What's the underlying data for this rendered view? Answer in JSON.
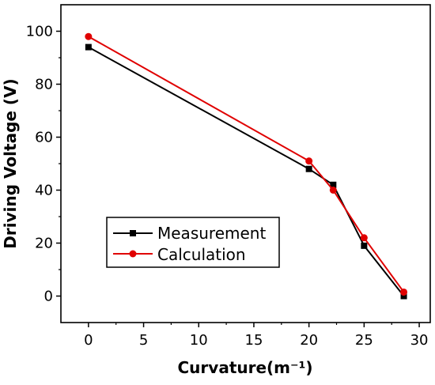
{
  "chart_data": {
    "type": "line",
    "xlabel": "Curvature(m⁻¹)",
    "ylabel": "Driving Voltage (V)",
    "xlim": [
      -2.5,
      31.0
    ],
    "ylim": [
      -10.0,
      110.0
    ],
    "xticks": [
      0,
      5,
      10,
      15,
      20,
      25,
      30
    ],
    "yticks": [
      0,
      20,
      40,
      60,
      80,
      100
    ],
    "grid": false,
    "legend_position": "bottom-left",
    "series": [
      {
        "name": "Measurement",
        "color": "#000000",
        "marker": "square",
        "x": [
          0,
          20,
          22.2,
          25,
          28.6
        ],
        "y": [
          94,
          48,
          42,
          19,
          0
        ]
      },
      {
        "name": "Calculation",
        "color": "#e00000",
        "marker": "circle",
        "x": [
          0,
          20,
          22.2,
          25,
          28.6
        ],
        "y": [
          98,
          51,
          40,
          22,
          1.5
        ]
      }
    ]
  }
}
